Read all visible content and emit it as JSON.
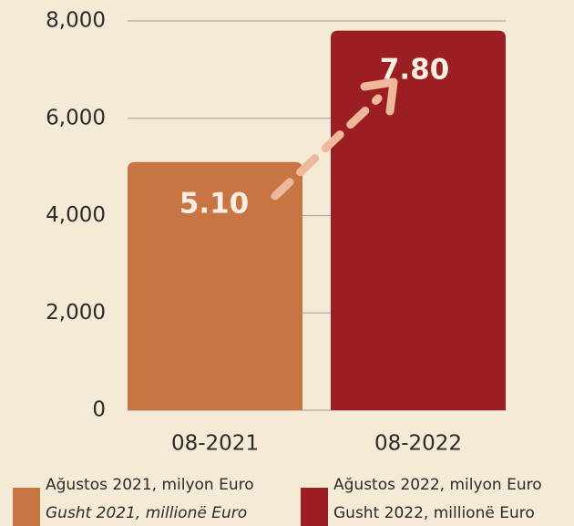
{
  "chart_data": {
    "type": "bar",
    "categories": [
      "08-2021",
      "08-2022"
    ],
    "values": [
      5100,
      7800
    ],
    "value_labels": [
      "5.10",
      "7.80"
    ],
    "colors": [
      "#c87544",
      "#9b1e22"
    ],
    "ylim": [
      0,
      8000
    ],
    "yticks": [
      {
        "value": 0,
        "label": "0"
      },
      {
        "value": 2000,
        "label": "2,000"
      },
      {
        "value": 4000,
        "label": "4,000"
      },
      {
        "value": 6000,
        "label": "6,000"
      },
      {
        "value": 8000,
        "label": "8,000"
      }
    ],
    "grid": true,
    "legend": [
      {
        "lines": [
          "Ağustos 2021, milyon Euro",
          "Gusht 2021, millionë Euro"
        ],
        "color": "#c87544"
      },
      {
        "lines": [
          "Ağustos 2022, milyon Euro",
          "Gusht 2022, millionë Euro"
        ],
        "color": "#9b1e22"
      }
    ]
  }
}
